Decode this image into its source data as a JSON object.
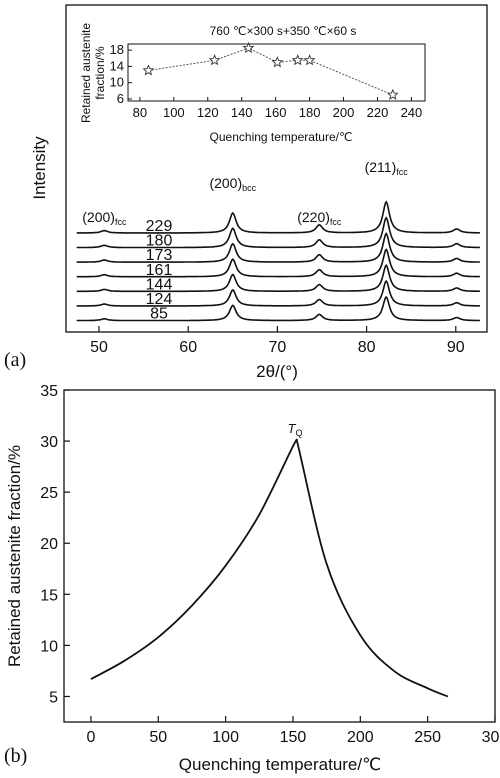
{
  "chart_data": [
    {
      "panel": "(a)",
      "type": "line",
      "xlabel": "2θ/(°)",
      "ylabel": "Intensity",
      "xlim": [
        46.3,
        93.5
      ],
      "xticks": [
        50,
        60,
        70,
        80,
        90
      ],
      "peaks": [
        {
          "label": "(200)fcc",
          "base": "(200)",
          "sub": "fcc",
          "x": 50.6,
          "height": 0.12
        },
        {
          "label": "(200)bcc",
          "base": "(200)",
          "sub": "bcc",
          "x": 65.0,
          "height": 1.0
        },
        {
          "label": "(220)fcc",
          "base": "(220)",
          "sub": "fcc",
          "x": 74.7,
          "height": 0.4
        },
        {
          "label": "(211)fcc",
          "base": "(211)",
          "sub": "fcc",
          "x": 82.2,
          "height": 1.55
        },
        {
          "label": "",
          "base": "",
          "sub": "",
          "x": 90.1,
          "height": 0.2
        }
      ],
      "series": [
        {
          "name": "229"
        },
        {
          "name": "180"
        },
        {
          "name": "173"
        },
        {
          "name": "161"
        },
        {
          "name": "144"
        },
        {
          "name": "124"
        },
        {
          "name": "85"
        }
      ],
      "inset": {
        "title": "760 ℃×300 s+350 ℃×60 s",
        "type": "line",
        "xlabel": "Quenching temperature/℃",
        "ylabel_lines": [
          "Retained austenite",
          "fraction/%"
        ],
        "xlim": [
          73,
          248
        ],
        "ylim": [
          5.5,
          19.5
        ],
        "xticks": [
          80,
          100,
          120,
          140,
          160,
          180,
          200,
          220,
          240
        ],
        "yticks": [
          6,
          10,
          14,
          18
        ],
        "x": [
          85,
          124,
          144,
          161,
          173,
          180,
          229
        ],
        "y": [
          13,
          15.5,
          18.5,
          15,
          15.5,
          15.5,
          7
        ],
        "marker": "star"
      }
    },
    {
      "panel": "(b)",
      "type": "line",
      "xlabel": "Quenching temperature/℃",
      "ylabel": "Retained austenite fraction/%",
      "xlim": [
        -20,
        300
      ],
      "ylim": [
        2.5,
        35
      ],
      "xticks": [
        0,
        50,
        100,
        150,
        200,
        250,
        300
      ],
      "yticks": [
        5,
        10,
        15,
        20,
        25,
        30,
        35
      ],
      "peak_label": {
        "main": "T",
        "sub": "Q"
      },
      "x": [
        0,
        25,
        50,
        75,
        100,
        125,
        150,
        153,
        175,
        200,
        225,
        250,
        265
      ],
      "y": [
        6.7,
        8.5,
        10.8,
        13.9,
        17.8,
        22.8,
        29.5,
        30,
        18.0,
        11.0,
        7.5,
        5.8,
        5.0
      ]
    }
  ]
}
